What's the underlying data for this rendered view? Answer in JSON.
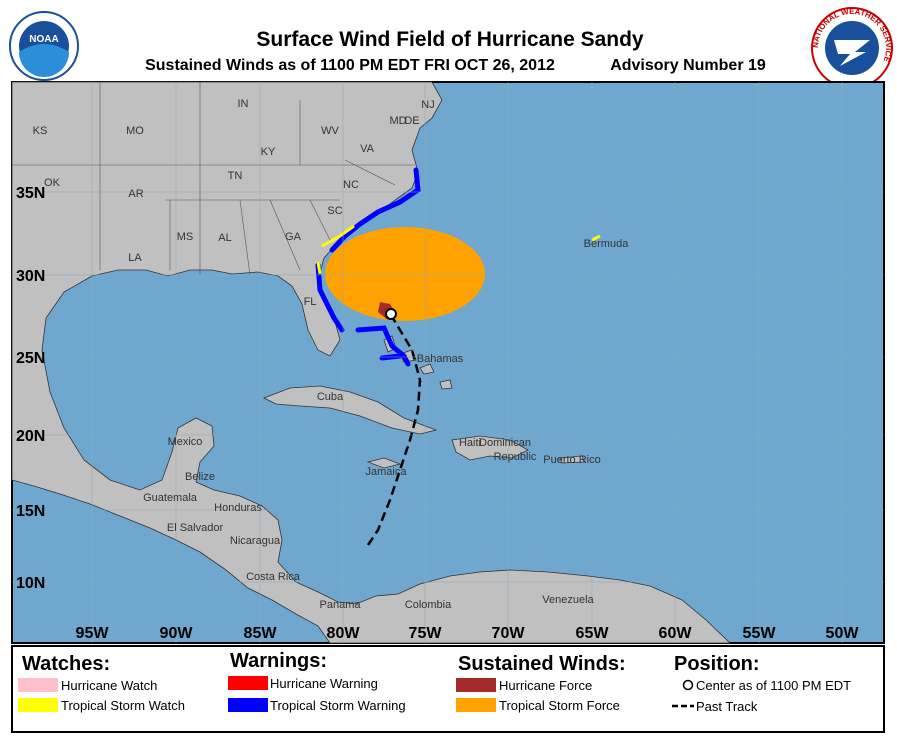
{
  "header": {
    "title": "Surface Wind Field of Hurricane Sandy",
    "subtitle": "Sustained Winds as of 1100 PM EDT FRI OCT 26, 2012",
    "advisory": "Advisory Number 19"
  },
  "logos": {
    "noaa": "NOAA",
    "nws": "NATIONAL WEATHER SERVICE"
  },
  "map": {
    "labels": [
      "IN",
      "KS",
      "MO",
      "WV",
      "VA",
      "MD",
      "DE",
      "NJ",
      "KY",
      "TN",
      "NC",
      "OK",
      "AR",
      "SC",
      "MS",
      "AL",
      "GA",
      "LA",
      "FL",
      "Bermuda",
      "Bahamas",
      "Cuba",
      "Mexico",
      "Haiti",
      "Dominican",
      "Republic",
      "Puerto Rico",
      "Jamaica",
      "Belize",
      "Guatemala",
      "Honduras",
      "El Salvador",
      "Nicaragua",
      "Costa Rica",
      "Panama",
      "Colombia",
      "Venezuela"
    ],
    "lat_labels": [
      "35N",
      "30N",
      "25N",
      "20N",
      "15N",
      "10N"
    ],
    "lon_labels": [
      "95W",
      "90W",
      "85W",
      "80W",
      "75W",
      "70W",
      "65W",
      "60W",
      "55W",
      "50W"
    ]
  },
  "legend": {
    "watches": {
      "title": "Watches:",
      "items": [
        "Hurricane Watch",
        "Tropical Storm Watch"
      ]
    },
    "warnings": {
      "title": "Warnings:",
      "items": [
        "Hurricane Warning",
        "Tropical Storm Warning"
      ]
    },
    "winds": {
      "title": "Sustained Winds:",
      "items": [
        "Hurricane Force",
        "Tropical Storm Force"
      ]
    },
    "position": {
      "title": "Position:",
      "items": [
        "Center as of 1100 PM EDT",
        "Past Track"
      ]
    }
  }
}
